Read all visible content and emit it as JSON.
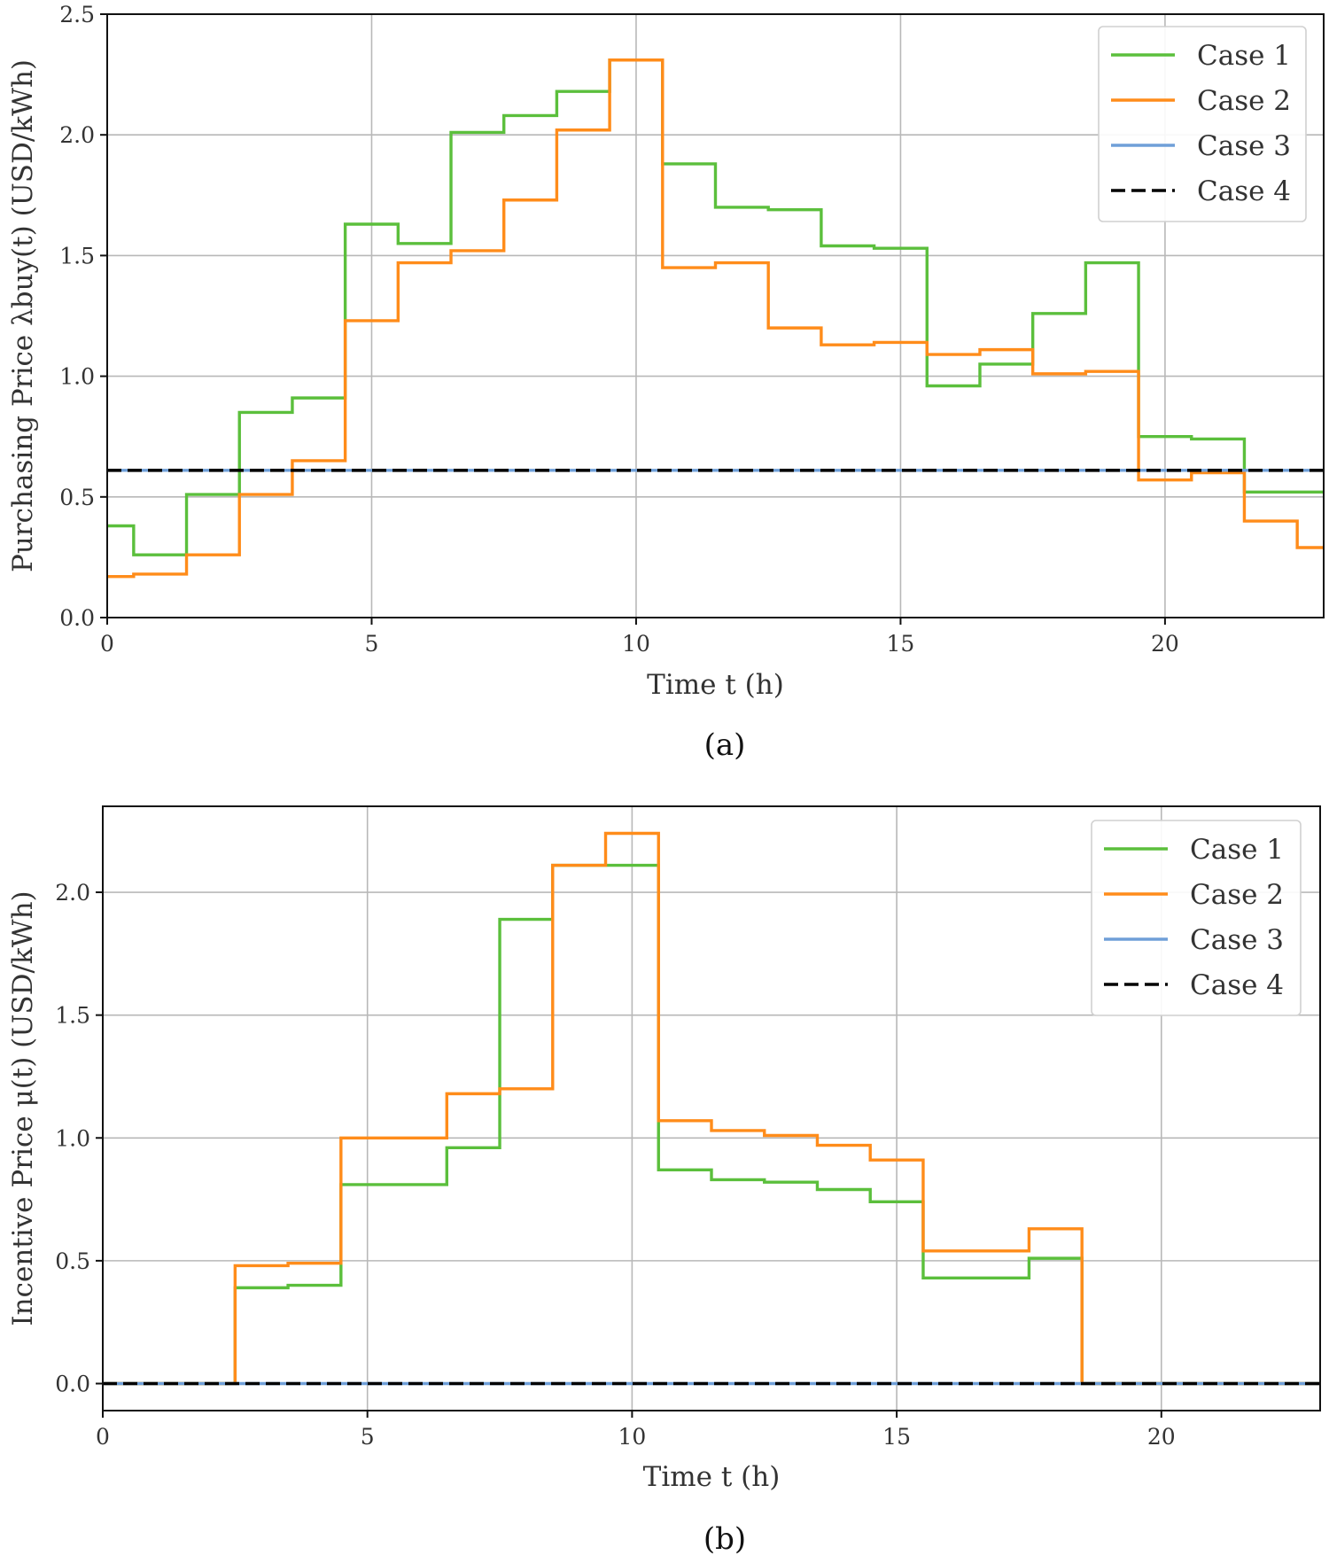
{
  "chart_data": [
    {
      "type": "line",
      "step": "mid",
      "panel": "a",
      "caption": "(a)",
      "xlabel": "Time t (h)",
      "ylabel": "Purchasing Price λbuy(t) (USD/kWh)",
      "xlim": [
        0,
        23
      ],
      "ylim": [
        0.0,
        2.5
      ],
      "xticks": [
        0,
        5,
        10,
        15,
        20
      ],
      "xtick_labels": [
        "0",
        "5",
        "10",
        "15",
        "20"
      ],
      "yticks": [
        0.0,
        0.5,
        1.0,
        1.5,
        2.0,
        2.5
      ],
      "ytick_labels": [
        "0.0",
        "0.5",
        "1.0",
        "1.5",
        "2.0",
        "2.5"
      ],
      "grid": true,
      "legend_position": "top-right",
      "x": [
        0,
        1,
        2,
        3,
        4,
        5,
        6,
        7,
        8,
        9,
        10,
        11,
        12,
        13,
        14,
        15,
        16,
        17,
        18,
        19,
        20,
        21,
        22,
        23
      ],
      "series": [
        {
          "name": "Case 1",
          "color": "#5bbf3c",
          "dash": "solid",
          "values": [
            0.38,
            0.26,
            0.51,
            0.85,
            0.91,
            1.63,
            1.55,
            2.01,
            2.08,
            2.18,
            2.31,
            1.88,
            1.7,
            1.69,
            1.54,
            1.53,
            0.96,
            1.05,
            1.26,
            1.47,
            0.75,
            0.74,
            0.52,
            0.52
          ]
        },
        {
          "name": "Case 2",
          "color": "#ff8c1a",
          "dash": "solid",
          "values": [
            0.17,
            0.18,
            0.26,
            0.51,
            0.65,
            1.23,
            1.47,
            1.52,
            1.73,
            2.02,
            2.31,
            1.45,
            1.47,
            1.2,
            1.13,
            1.14,
            1.09,
            1.11,
            1.01,
            1.02,
            0.57,
            0.6,
            0.4,
            0.29
          ]
        },
        {
          "name": "Case 3",
          "color": "#6f9fd8",
          "dash": "solid",
          "values": [
            0.61,
            0.61,
            0.61,
            0.61,
            0.61,
            0.61,
            0.61,
            0.61,
            0.61,
            0.61,
            0.61,
            0.61,
            0.61,
            0.61,
            0.61,
            0.61,
            0.61,
            0.61,
            0.61,
            0.61,
            0.61,
            0.61,
            0.61,
            0.61
          ]
        },
        {
          "name": "Case 4",
          "color": "#000000",
          "dash": "dashed",
          "values": [
            0.61,
            0.61,
            0.61,
            0.61,
            0.61,
            0.61,
            0.61,
            0.61,
            0.61,
            0.61,
            0.61,
            0.61,
            0.61,
            0.61,
            0.61,
            0.61,
            0.61,
            0.61,
            0.61,
            0.61,
            0.61,
            0.61,
            0.61,
            0.61
          ]
        }
      ]
    },
    {
      "type": "line",
      "step": "mid",
      "panel": "b",
      "caption": "(b)",
      "xlabel": "Time t (h)",
      "ylabel": "Incentive Price μ(t) (USD/kWh)",
      "xlim": [
        0,
        23
      ],
      "ylim": [
        -0.11,
        2.35
      ],
      "xticks": [
        0,
        5,
        10,
        15,
        20
      ],
      "xtick_labels": [
        "0",
        "5",
        "10",
        "15",
        "20"
      ],
      "yticks": [
        0.0,
        0.5,
        1.0,
        1.5,
        2.0
      ],
      "ytick_labels": [
        "0.0",
        "0.5",
        "1.0",
        "1.5",
        "2.0"
      ],
      "grid": true,
      "legend_position": "top-right",
      "x": [
        0,
        1,
        2,
        3,
        4,
        5,
        6,
        7,
        8,
        9,
        10,
        11,
        12,
        13,
        14,
        15,
        16,
        17,
        18,
        19,
        20,
        21,
        22,
        23
      ],
      "series": [
        {
          "name": "Case 1",
          "color": "#5bbf3c",
          "dash": "solid",
          "values": [
            0,
            0,
            0,
            0.39,
            0.4,
            0.81,
            0.81,
            0.96,
            1.89,
            2.11,
            2.11,
            0.87,
            0.83,
            0.82,
            0.79,
            0.74,
            0.43,
            0.43,
            0.51,
            0,
            0,
            0,
            0,
            0
          ]
        },
        {
          "name": "Case 2",
          "color": "#ff8c1a",
          "dash": "solid",
          "values": [
            0,
            0,
            0,
            0.48,
            0.49,
            1.0,
            1.0,
            1.18,
            1.2,
            2.11,
            2.24,
            1.07,
            1.03,
            1.01,
            0.97,
            0.91,
            0.54,
            0.54,
            0.63,
            0,
            0,
            0,
            0,
            0
          ]
        },
        {
          "name": "Case 3",
          "color": "#6f9fd8",
          "dash": "solid",
          "values": [
            0,
            0,
            0,
            0,
            0,
            0,
            0,
            0,
            0,
            0,
            0,
            0,
            0,
            0,
            0,
            0,
            0,
            0,
            0,
            0,
            0,
            0,
            0,
            0
          ]
        },
        {
          "name": "Case 4",
          "color": "#000000",
          "dash": "dashed",
          "values": [
            0,
            0,
            0,
            0,
            0,
            0,
            0,
            0,
            0,
            0,
            0,
            0,
            0,
            0,
            0,
            0,
            0,
            0,
            0,
            0,
            0,
            0,
            0,
            0
          ]
        }
      ]
    }
  ]
}
